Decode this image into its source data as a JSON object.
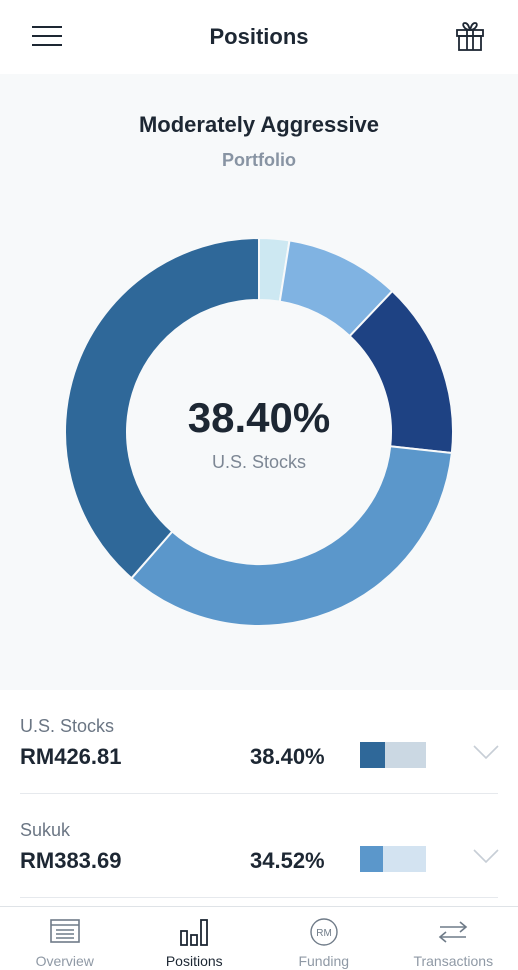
{
  "header": {
    "title": "Positions",
    "menu_icon": "hamburger-menu-icon",
    "gift_icon": "gift-icon"
  },
  "portfolio": {
    "risk_profile": "Moderately Aggressive",
    "subtitle": "Portfolio",
    "highlight": {
      "percent": "38.40%",
      "label": "U.S. Stocks"
    }
  },
  "chart_data": {
    "type": "pie",
    "variant": "donut",
    "slices": [
      {
        "label": "",
        "value": 2.5,
        "color": "#cde8f2"
      },
      {
        "label": "",
        "value": 9.5,
        "color": "#80b3e2"
      },
      {
        "label": "",
        "value": 14.6,
        "color": "#1e4283"
      },
      {
        "label": "Sukuk",
        "value": 34.52,
        "color": "#5b97cb"
      },
      {
        "label": "U.S. Stocks",
        "value": 38.4,
        "color": "#2f6899"
      }
    ],
    "center_text": "38.40%",
    "center_label": "U.S. Stocks"
  },
  "holdings": [
    {
      "name": "U.S. Stocks",
      "amount": "RM426.81",
      "percent": "38.40%",
      "share": 0.384,
      "fill_color": "#2f6899",
      "track_color": "#cbd8e3"
    },
    {
      "name": "Sukuk",
      "amount": "RM383.69",
      "percent": "34.52%",
      "share": 0.3452,
      "fill_color": "#5b97cb",
      "track_color": "#d3e3f1"
    }
  ],
  "tabs": [
    {
      "label": "Overview",
      "icon": "overview-icon",
      "active": false
    },
    {
      "label": "Positions",
      "icon": "positions-bar-chart-icon",
      "active": true
    },
    {
      "label": "Funding",
      "icon": "funding-rm-icon",
      "active": false,
      "icon_text": "RM"
    },
    {
      "label": "Transactions",
      "icon": "transactions-arrows-icon",
      "active": false
    }
  ]
}
